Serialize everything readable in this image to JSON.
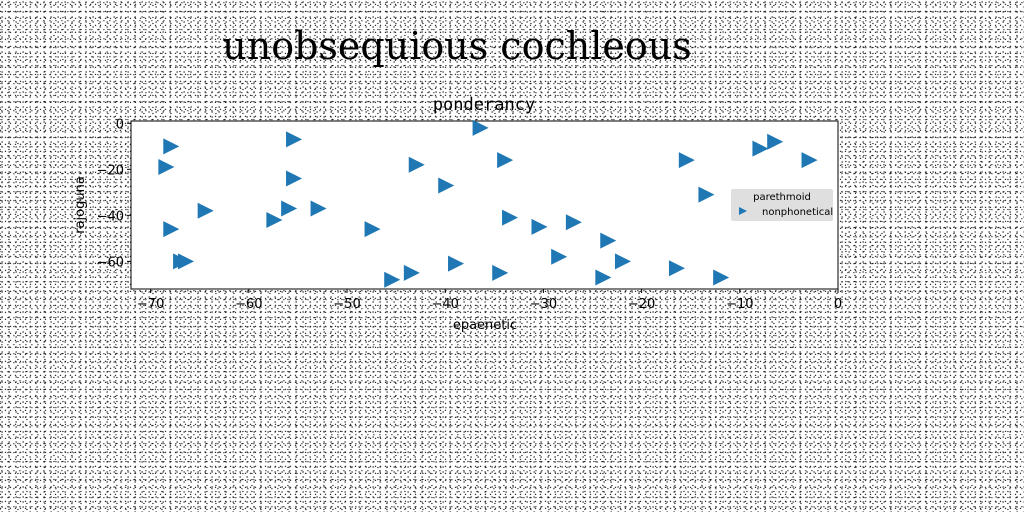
{
  "page": {
    "title": "unobsequious cochleous"
  },
  "chart_data": {
    "type": "scatter",
    "title": "ponderancy",
    "xlabel": "epaenetic",
    "ylabel": "rajoguna",
    "xlim": [
      -72,
      0
    ],
    "ylim": [
      -72,
      1
    ],
    "xticks": [
      -70,
      -60,
      -50,
      -40,
      -30,
      -20,
      -10,
      0
    ],
    "yticks": [
      0,
      -20,
      -40,
      -60
    ],
    "grid": false,
    "legend": {
      "placement": "right",
      "title": "parethmoid",
      "entries": [
        "nonphonetical"
      ]
    },
    "series": [
      {
        "name": "nonphonetical",
        "marker": "triangle-right",
        "color": "#1f77b4",
        "points": [
          {
            "x": -68,
            "y": -10
          },
          {
            "x": -68.5,
            "y": -19
          },
          {
            "x": -68,
            "y": -46
          },
          {
            "x": -67,
            "y": -60
          },
          {
            "x": -66.5,
            "y": -60
          },
          {
            "x": -64.5,
            "y": -38
          },
          {
            "x": -57.5,
            "y": -42
          },
          {
            "x": -56,
            "y": -37
          },
          {
            "x": -55.5,
            "y": -7
          },
          {
            "x": -55.5,
            "y": -24
          },
          {
            "x": -53,
            "y": -37
          },
          {
            "x": -47.5,
            "y": -46
          },
          {
            "x": -45.5,
            "y": -68
          },
          {
            "x": -43.5,
            "y": -65
          },
          {
            "x": -43,
            "y": -18
          },
          {
            "x": -40,
            "y": -27
          },
          {
            "x": -39,
            "y": -61
          },
          {
            "x": -36.5,
            "y": -2
          },
          {
            "x": -34.5,
            "y": -65
          },
          {
            "x": -34,
            "y": -16
          },
          {
            "x": -33.5,
            "y": -41
          },
          {
            "x": -30.5,
            "y": -45
          },
          {
            "x": -28.5,
            "y": -58
          },
          {
            "x": -27,
            "y": -43
          },
          {
            "x": -24,
            "y": -67
          },
          {
            "x": -23.5,
            "y": -51
          },
          {
            "x": -22,
            "y": -60
          },
          {
            "x": -16.5,
            "y": -63
          },
          {
            "x": -15.5,
            "y": -16
          },
          {
            "x": -13.5,
            "y": -31
          },
          {
            "x": -12,
            "y": -67
          },
          {
            "x": -8,
            "y": -11
          },
          {
            "x": -6.5,
            "y": -8
          },
          {
            "x": -3,
            "y": -16
          }
        ]
      }
    ]
  }
}
